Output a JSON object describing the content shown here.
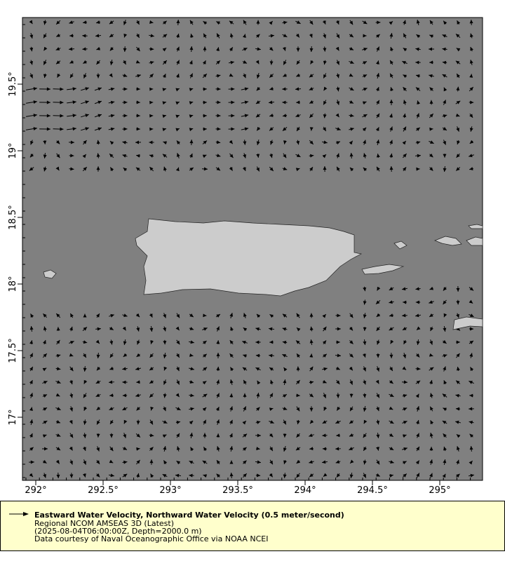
{
  "map": {
    "colors": {
      "ocean": "#808080",
      "land": "#cccccc",
      "vectors": "#000000",
      "legend_bg": "#ffffcc"
    },
    "lon_ticks": [
      "292°",
      "292.5°",
      "293°",
      "293.5°",
      "294°",
      "294.5°",
      "295°"
    ],
    "lat_ticks": [
      "19.5°",
      "19°",
      "18.5°",
      "18°",
      "17.5°",
      "17°"
    ],
    "lon_values": [
      292,
      292.5,
      293,
      293.5,
      294,
      294.5,
      295
    ],
    "lat_values": [
      19.5,
      19,
      18.5,
      18,
      17.5,
      17
    ]
  },
  "legend": {
    "icon": "arrow-icon",
    "title": "Eastward Water Velocity, Northward Water Velocity (0.5 meter/second)",
    "line1": "Regional NCOM AMSEAS 3D (Latest)",
    "line2": "(2025-08-04T06:00:00Z, Depth=2000.0 m)",
    "line3": "Data courtesy of Naval Oceanographic Office via NOAA NCEI"
  }
}
